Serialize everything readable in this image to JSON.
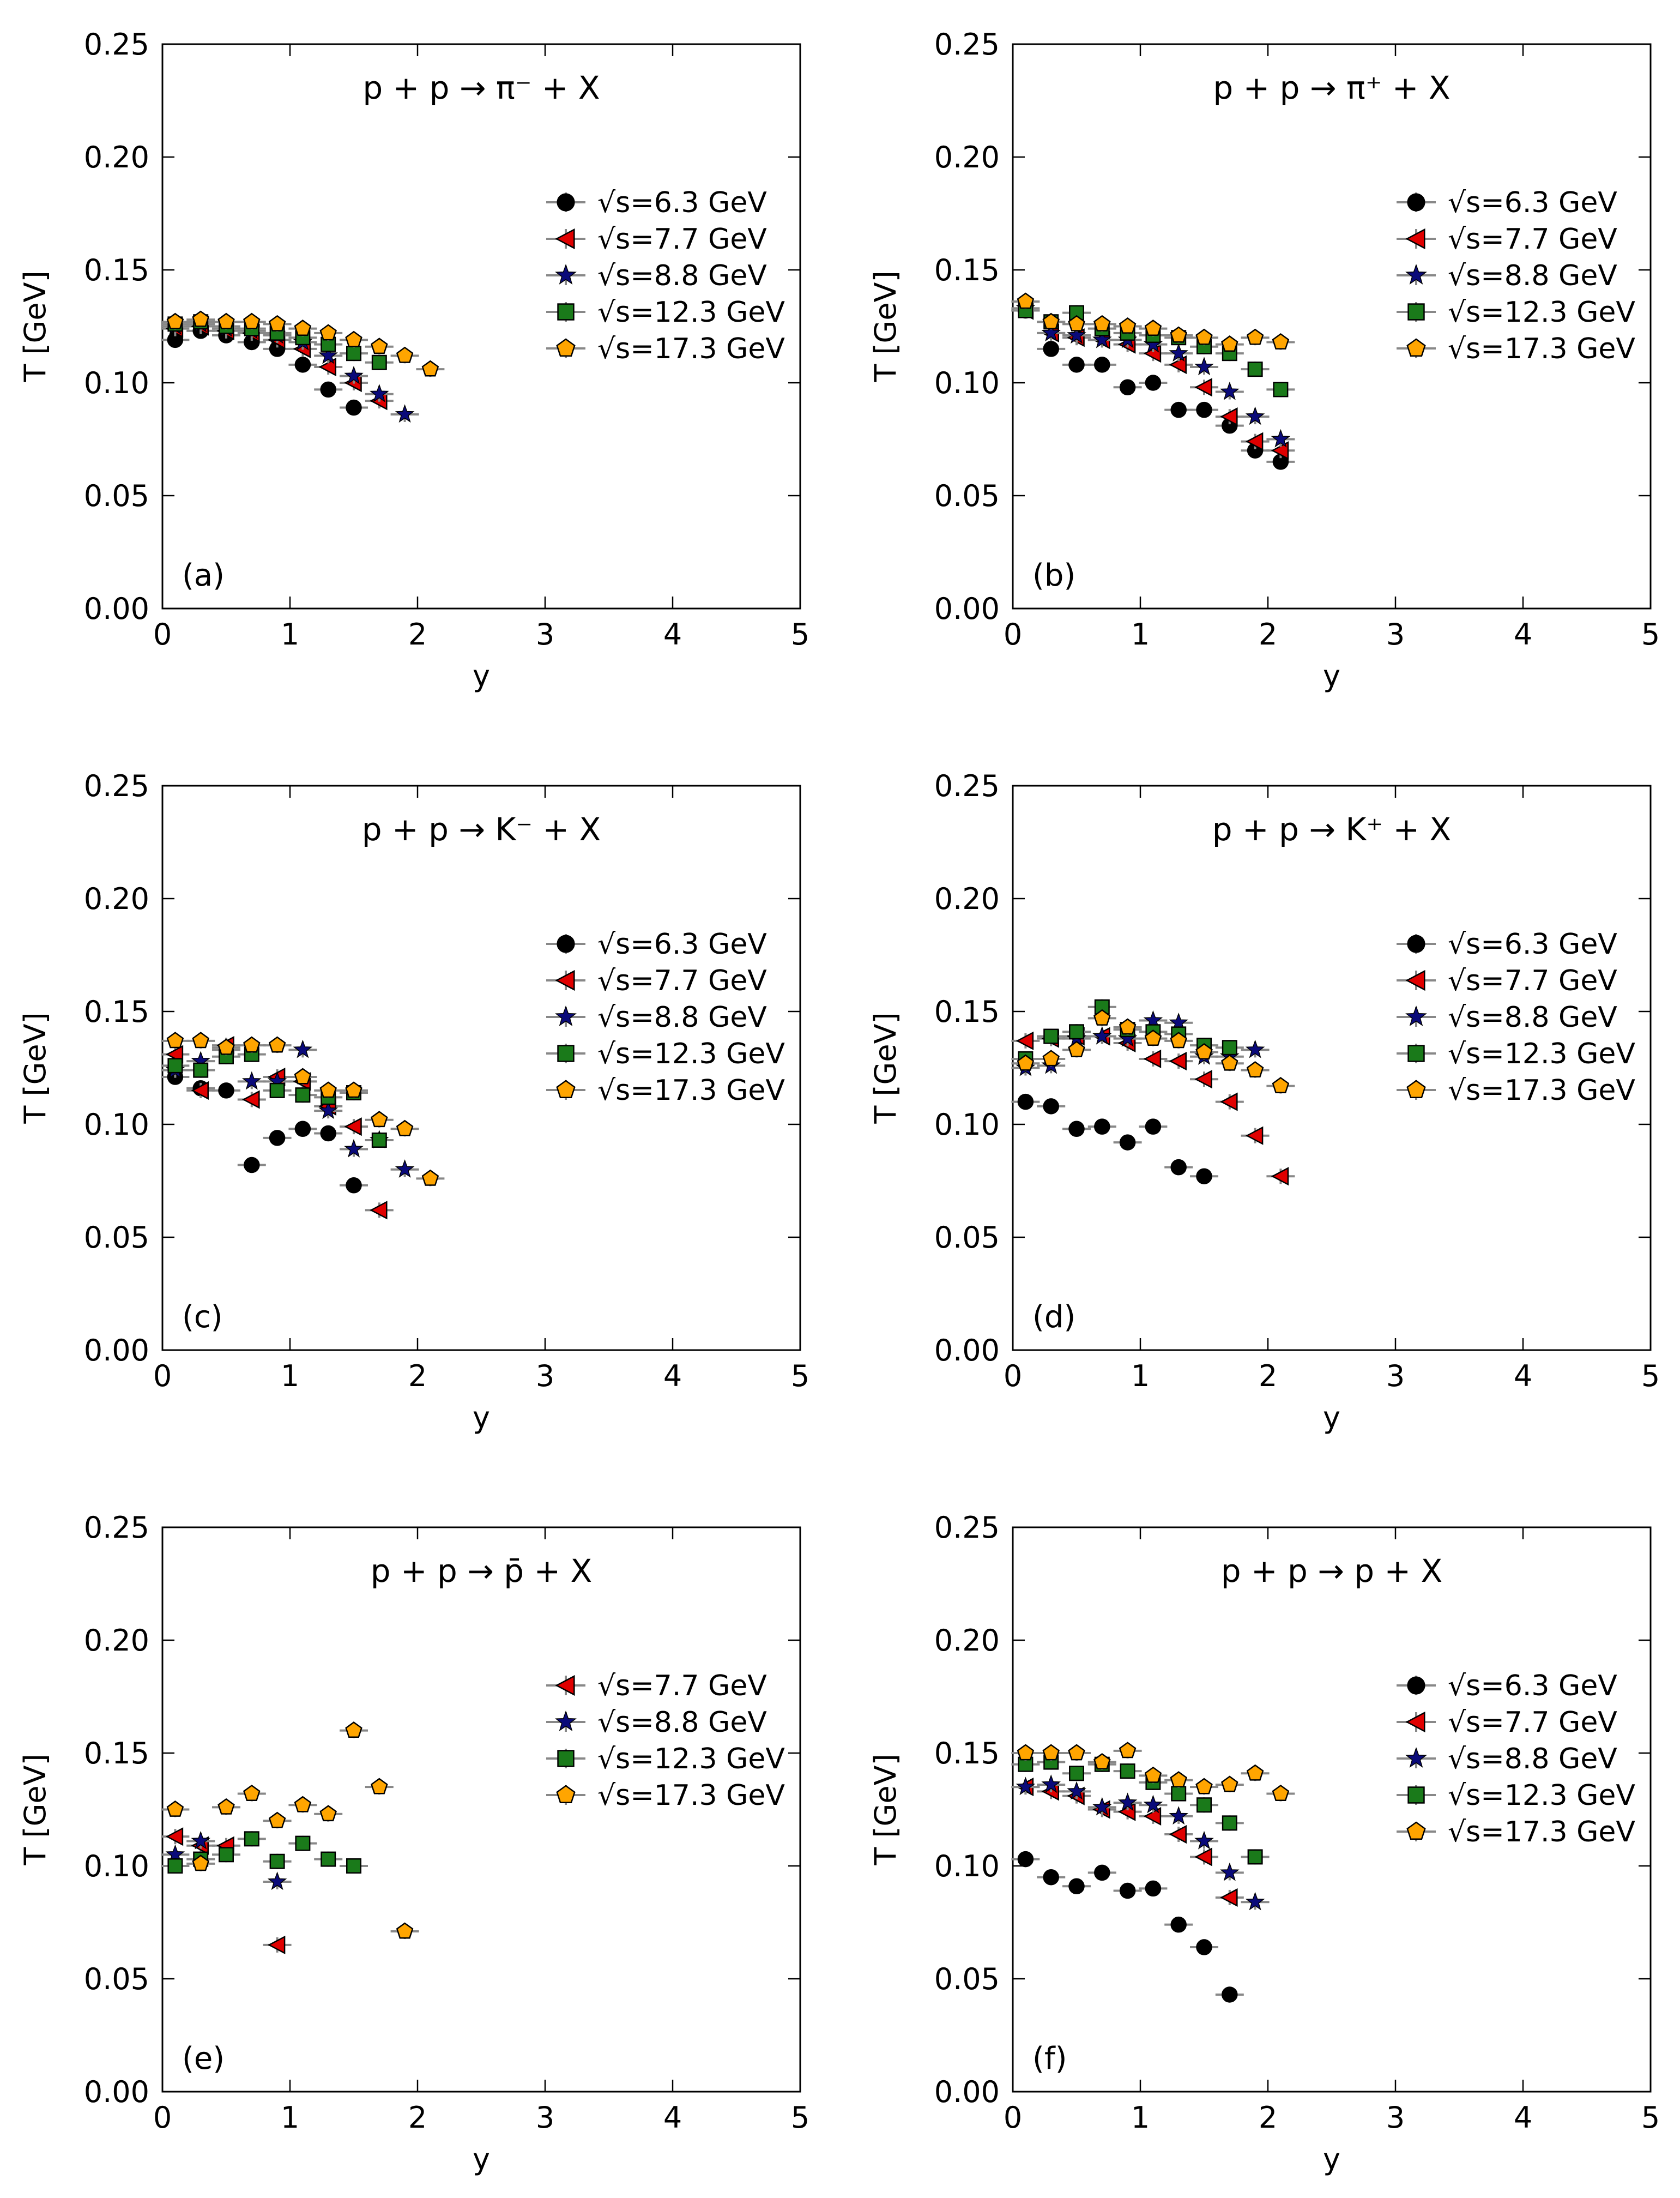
{
  "figure": {
    "colors": {
      "6.3 GeV": "#000000",
      "7.7 GeV": "#e00000",
      "8.8 GeV": "#0a0a7a",
      "12.3 GeV": "#1a7a1a",
      "17.3 GeV": "#ffa500"
    },
    "legend_prefix": "√s=",
    "errorbar_color": "#888888"
  },
  "chart_data": [
    {
      "type": "scatter",
      "panel": "(a)",
      "title": "p + p → π⁻ + X",
      "xlabel": "y",
      "ylabel": "T [GeV]",
      "xlim": [
        0,
        5
      ],
      "ylim": [
        0,
        0.25
      ],
      "xticks": [
        "0",
        "1",
        "2",
        "3",
        "4",
        "5"
      ],
      "yticks": [
        "0.00",
        "0.05",
        "0.10",
        "0.15",
        "0.20",
        "0.25"
      ],
      "series": [
        {
          "name": "6.3 GeV",
          "marker": "circle",
          "x": [
            0.1,
            0.3,
            0.5,
            0.7,
            0.9,
            1.1,
            1.3,
            1.5
          ],
          "y": [
            0.119,
            0.123,
            0.121,
            0.118,
            0.115,
            0.108,
            0.097,
            0.089
          ]
        },
        {
          "name": "7.7 GeV",
          "marker": "triangle-left",
          "x": [
            0.1,
            0.3,
            0.5,
            0.7,
            0.9,
            1.1,
            1.3,
            1.5,
            1.7
          ],
          "y": [
            0.124,
            0.125,
            0.123,
            0.122,
            0.119,
            0.115,
            0.107,
            0.1,
            0.092
          ]
        },
        {
          "name": "8.8 GeV",
          "marker": "star",
          "x": [
            0.1,
            0.3,
            0.5,
            0.7,
            0.9,
            1.1,
            1.3,
            1.5,
            1.7,
            1.9
          ],
          "y": [
            0.125,
            0.126,
            0.124,
            0.123,
            0.121,
            0.118,
            0.112,
            0.103,
            0.095,
            0.086
          ]
        },
        {
          "name": "12.3 GeV",
          "marker": "square",
          "x": [
            0.1,
            0.3,
            0.5,
            0.7,
            0.9,
            1.1,
            1.3,
            1.5,
            1.7
          ],
          "y": [
            0.126,
            0.127,
            0.125,
            0.124,
            0.122,
            0.12,
            0.117,
            0.113,
            0.109
          ]
        },
        {
          "name": "17.3 GeV",
          "marker": "pentagon",
          "x": [
            0.1,
            0.3,
            0.5,
            0.7,
            0.9,
            1.1,
            1.3,
            1.5,
            1.7,
            1.9,
            2.1
          ],
          "y": [
            0.127,
            0.128,
            0.127,
            0.127,
            0.126,
            0.124,
            0.122,
            0.119,
            0.116,
            0.112,
            0.106
          ]
        }
      ]
    },
    {
      "type": "scatter",
      "panel": "(b)",
      "title": "p + p → π⁺ + X",
      "xlabel": "y",
      "ylabel": "T [GeV]",
      "xlim": [
        0,
        5
      ],
      "ylim": [
        0,
        0.25
      ],
      "xticks": [
        "0",
        "1",
        "2",
        "3",
        "4",
        "5"
      ],
      "yticks": [
        "0.00",
        "0.05",
        "0.10",
        "0.15",
        "0.20",
        "0.25"
      ],
      "series": [
        {
          "name": "6.3 GeV",
          "marker": "circle",
          "x": [
            0.1,
            0.3,
            0.5,
            0.7,
            0.9,
            1.1,
            1.3,
            1.5,
            1.7,
            1.9,
            2.1
          ],
          "y": [
            0.132,
            0.115,
            0.108,
            0.108,
            0.098,
            0.1,
            0.088,
            0.088,
            0.081,
            0.07,
            0.065
          ]
        },
        {
          "name": "7.7 GeV",
          "marker": "triangle-left",
          "x": [
            0.1,
            0.3,
            0.5,
            0.7,
            0.9,
            1.1,
            1.3,
            1.5,
            1.7,
            1.9,
            2.1
          ],
          "y": [
            0.132,
            0.122,
            0.12,
            0.119,
            0.117,
            0.113,
            0.108,
            0.098,
            0.085,
            0.074,
            0.07
          ]
        },
        {
          "name": "8.8 GeV",
          "marker": "star",
          "x": [
            0.1,
            0.3,
            0.5,
            0.7,
            0.9,
            1.1,
            1.3,
            1.5,
            1.7,
            1.9,
            2.1
          ],
          "y": [
            0.133,
            0.122,
            0.121,
            0.119,
            0.119,
            0.117,
            0.113,
            0.107,
            0.096,
            0.085,
            0.075
          ]
        },
        {
          "name": "12.3 GeV",
          "marker": "square",
          "x": [
            0.1,
            0.3,
            0.5,
            0.7,
            0.9,
            1.1,
            1.3,
            1.5,
            1.7,
            1.9,
            2.1
          ],
          "y": [
            0.132,
            0.127,
            0.131,
            0.124,
            0.122,
            0.121,
            0.12,
            0.116,
            0.113,
            0.106,
            0.097
          ]
        },
        {
          "name": "17.3 GeV",
          "marker": "pentagon",
          "x": [
            0.1,
            0.3,
            0.5,
            0.7,
            0.9,
            1.1,
            1.3,
            1.5,
            1.7,
            1.9,
            2.1
          ],
          "y": [
            0.136,
            0.127,
            0.126,
            0.126,
            0.125,
            0.124,
            0.121,
            0.12,
            0.117,
            0.12,
            0.118
          ]
        }
      ]
    },
    {
      "type": "scatter",
      "panel": "(c)",
      "title": "p + p → K⁻ + X",
      "xlabel": "y",
      "ylabel": "T [GeV]",
      "xlim": [
        0,
        5
      ],
      "ylim": [
        0,
        0.25
      ],
      "xticks": [
        "0",
        "1",
        "2",
        "3",
        "4",
        "5"
      ],
      "yticks": [
        "0.00",
        "0.05",
        "0.10",
        "0.15",
        "0.20",
        "0.25"
      ],
      "series": [
        {
          "name": "6.3 GeV",
          "marker": "circle",
          "x": [
            0.1,
            0.3,
            0.5,
            0.7,
            0.9,
            1.1,
            1.3,
            1.5
          ],
          "y": [
            0.121,
            0.116,
            0.115,
            0.082,
            0.094,
            0.098,
            0.096,
            0.073
          ]
        },
        {
          "name": "7.7 GeV",
          "marker": "triangle-left",
          "x": [
            0.1,
            0.3,
            0.5,
            0.7,
            0.9,
            1.1,
            1.3,
            1.5,
            1.7
          ],
          "y": [
            0.131,
            0.115,
            0.135,
            0.111,
            0.121,
            0.119,
            0.108,
            0.099,
            0.062
          ]
        },
        {
          "name": "8.8 GeV",
          "marker": "star",
          "x": [
            0.1,
            0.3,
            0.5,
            0.7,
            0.9,
            1.1,
            1.3,
            1.5,
            1.7,
            1.9
          ],
          "y": [
            0.124,
            0.128,
            0.133,
            0.119,
            0.119,
            0.133,
            0.106,
            0.089,
            0.093,
            0.08
          ]
        },
        {
          "name": "12.3 GeV",
          "marker": "square",
          "x": [
            0.1,
            0.3,
            0.5,
            0.7,
            0.9,
            1.1,
            1.3,
            1.5,
            1.7
          ],
          "y": [
            0.126,
            0.124,
            0.13,
            0.131,
            0.115,
            0.113,
            0.112,
            0.114,
            0.093
          ]
        },
        {
          "name": "17.3 GeV",
          "marker": "pentagon",
          "x": [
            0.1,
            0.3,
            0.5,
            0.7,
            0.9,
            1.1,
            1.3,
            1.5,
            1.7,
            1.9,
            2.1
          ],
          "y": [
            0.137,
            0.137,
            0.134,
            0.135,
            0.135,
            0.121,
            0.115,
            0.115,
            0.102,
            0.098,
            0.076
          ]
        }
      ]
    },
    {
      "type": "scatter",
      "panel": "(d)",
      "title": "p + p → K⁺ + X",
      "xlabel": "y",
      "ylabel": "T [GeV]",
      "xlim": [
        0,
        5
      ],
      "ylim": [
        0,
        0.25
      ],
      "xticks": [
        "0",
        "1",
        "2",
        "3",
        "4",
        "5"
      ],
      "yticks": [
        "0.00",
        "0.05",
        "0.10",
        "0.15",
        "0.20",
        "0.25"
      ],
      "series": [
        {
          "name": "6.3 GeV",
          "marker": "circle",
          "x": [
            0.1,
            0.3,
            0.5,
            0.7,
            0.9,
            1.1,
            1.3,
            1.5
          ],
          "y": [
            0.11,
            0.108,
            0.098,
            0.099,
            0.092,
            0.099,
            0.081,
            0.077
          ]
        },
        {
          "name": "7.7 GeV",
          "marker": "triangle-left",
          "x": [
            0.1,
            0.3,
            0.5,
            0.7,
            0.9,
            1.1,
            1.3,
            1.5,
            1.7,
            1.9,
            2.1
          ],
          "y": [
            0.137,
            0.138,
            0.139,
            0.139,
            0.136,
            0.129,
            0.128,
            0.12,
            0.11,
            0.095,
            0.077
          ]
        },
        {
          "name": "8.8 GeV",
          "marker": "star",
          "x": [
            0.1,
            0.3,
            0.5,
            0.7,
            0.9,
            1.1,
            1.3,
            1.5,
            1.7,
            1.9
          ],
          "y": [
            0.125,
            0.126,
            0.138,
            0.139,
            0.138,
            0.146,
            0.145,
            0.13,
            0.13,
            0.133
          ]
        },
        {
          "name": "12.3 GeV",
          "marker": "square",
          "x": [
            0.1,
            0.3,
            0.5,
            0.7,
            0.9,
            1.1,
            1.3,
            1.5,
            1.7
          ],
          "y": [
            0.129,
            0.139,
            0.141,
            0.152,
            0.142,
            0.141,
            0.14,
            0.135,
            0.134
          ]
        },
        {
          "name": "17.3 GeV",
          "marker": "pentagon",
          "x": [
            0.1,
            0.3,
            0.5,
            0.7,
            0.9,
            1.1,
            1.3,
            1.5,
            1.7,
            1.9,
            2.1
          ],
          "y": [
            0.127,
            0.129,
            0.133,
            0.147,
            0.143,
            0.138,
            0.137,
            0.132,
            0.127,
            0.124,
            0.117
          ]
        }
      ]
    },
    {
      "type": "scatter",
      "panel": "(e)",
      "title": "p + p → p̄ + X",
      "xlabel": "y",
      "ylabel": "T [GeV]",
      "xlim": [
        0,
        5
      ],
      "ylim": [
        0,
        0.25
      ],
      "xticks": [
        "0",
        "1",
        "2",
        "3",
        "4",
        "5"
      ],
      "yticks": [
        "0.00",
        "0.05",
        "0.10",
        "0.15",
        "0.20",
        "0.25"
      ],
      "series": [
        {
          "name": "7.7 GeV",
          "marker": "triangle-left",
          "x": [
            0.1,
            0.3,
            0.5,
            0.9
          ],
          "y": [
            0.113,
            0.109,
            0.109,
            0.065
          ]
        },
        {
          "name": "8.8 GeV",
          "marker": "star",
          "x": [
            0.1,
            0.3,
            0.9
          ],
          "y": [
            0.105,
            0.111,
            0.093
          ]
        },
        {
          "name": "12.3 GeV",
          "marker": "square",
          "x": [
            0.1,
            0.3,
            0.5,
            0.7,
            0.9,
            1.1,
            1.3,
            1.5
          ],
          "y": [
            0.1,
            0.103,
            0.105,
            0.112,
            0.102,
            0.11,
            0.103,
            0.1
          ]
        },
        {
          "name": "17.3 GeV",
          "marker": "pentagon",
          "x": [
            0.1,
            0.3,
            0.5,
            0.7,
            0.9,
            1.1,
            1.3,
            1.5,
            1.7,
            1.9
          ],
          "y": [
            0.125,
            0.101,
            0.126,
            0.132,
            0.12,
            0.127,
            0.123,
            0.16,
            0.135,
            0.071
          ]
        }
      ]
    },
    {
      "type": "scatter",
      "panel": "(f)",
      "title": "p + p → p + X",
      "xlabel": "y",
      "ylabel": "T [GeV]",
      "xlim": [
        0,
        5
      ],
      "ylim": [
        0,
        0.25
      ],
      "xticks": [
        "0",
        "1",
        "2",
        "3",
        "4",
        "5"
      ],
      "yticks": [
        "0.00",
        "0.05",
        "0.10",
        "0.15",
        "0.20",
        "0.25"
      ],
      "series": [
        {
          "name": "6.3 GeV",
          "marker": "circle",
          "x": [
            0.1,
            0.3,
            0.5,
            0.7,
            0.9,
            1.1,
            1.3,
            1.5,
            1.7
          ],
          "y": [
            0.103,
            0.095,
            0.091,
            0.097,
            0.089,
            0.09,
            0.074,
            0.064,
            0.043
          ]
        },
        {
          "name": "7.7 GeV",
          "marker": "triangle-left",
          "x": [
            0.1,
            0.3,
            0.5,
            0.7,
            0.9,
            1.1,
            1.3,
            1.5,
            1.7
          ],
          "y": [
            0.135,
            0.133,
            0.131,
            0.125,
            0.124,
            0.122,
            0.114,
            0.104,
            0.086
          ]
        },
        {
          "name": "8.8 GeV",
          "marker": "star",
          "x": [
            0.1,
            0.3,
            0.5,
            0.7,
            0.9,
            1.1,
            1.3,
            1.5,
            1.7,
            1.9
          ],
          "y": [
            0.135,
            0.136,
            0.133,
            0.126,
            0.128,
            0.127,
            0.122,
            0.111,
            0.097,
            0.084
          ]
        },
        {
          "name": "12.3 GeV",
          "marker": "square",
          "x": [
            0.1,
            0.3,
            0.5,
            0.7,
            0.9,
            1.1,
            1.3,
            1.5,
            1.7,
            1.9
          ],
          "y": [
            0.145,
            0.146,
            0.141,
            0.145,
            0.142,
            0.137,
            0.132,
            0.127,
            0.119,
            0.104
          ]
        },
        {
          "name": "17.3 GeV",
          "marker": "pentagon",
          "x": [
            0.1,
            0.3,
            0.5,
            0.7,
            0.9,
            1.1,
            1.3,
            1.5,
            1.7,
            1.9,
            2.1
          ],
          "y": [
            0.15,
            0.15,
            0.15,
            0.146,
            0.151,
            0.14,
            0.138,
            0.135,
            0.136,
            0.141,
            0.132
          ]
        }
      ]
    }
  ]
}
